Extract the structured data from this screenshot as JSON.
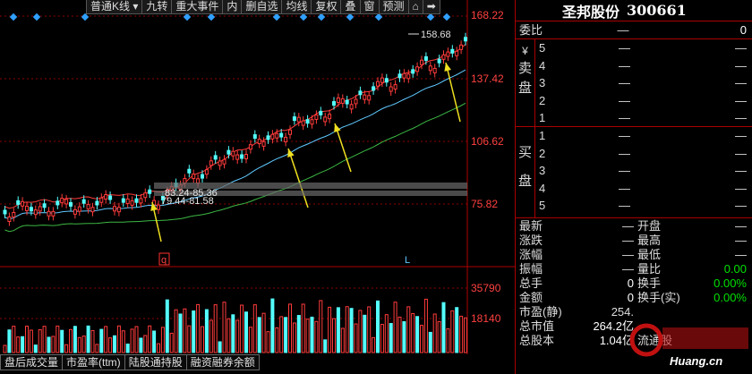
{
  "toolbar": {
    "items": [
      "普通K线",
      "▾",
      "九转",
      "重大事件",
      "内",
      "删自选",
      "均线",
      "复权",
      "叠",
      "窗",
      "预测"
    ]
  },
  "price_axis": {
    "labels": [
      "168.22",
      "137.42",
      "106.62",
      "75.82"
    ]
  },
  "price_markers": {
    "high_label": "158.68",
    "range_top": "83.24-85.36",
    "range_bottom": "79.44-81.58",
    "event_q": "q",
    "event_l": "L"
  },
  "volume_axis": {
    "labels": [
      "35790",
      "18140"
    ]
  },
  "bottom_tabs": [
    "盘后成交量",
    "市盈率(ttm)",
    "陆股通持股",
    "融资融券余额"
  ],
  "quote": {
    "name": "圣邦股份",
    "code": "300661",
    "weibi_label": "委比",
    "weibi_dash": "—",
    "weibi_value": "0",
    "sell_side": [
      "¥",
      "卖",
      "盘"
    ],
    "sell_levels": [
      {
        "level": "5",
        "price": "—",
        "vol": "—"
      },
      {
        "level": "4",
        "price": "—",
        "vol": "—"
      },
      {
        "level": "3",
        "price": "—",
        "vol": "—"
      },
      {
        "level": "2",
        "price": "—",
        "vol": "—"
      },
      {
        "level": "1",
        "price": "—",
        "vol": "—"
      }
    ],
    "buy_side": [
      "买",
      "盘"
    ],
    "buy_levels": [
      {
        "level": "1",
        "price": "—",
        "vol": "—"
      },
      {
        "level": "2",
        "price": "—",
        "vol": "—"
      },
      {
        "level": "3",
        "price": "—",
        "vol": "—"
      },
      {
        "level": "4",
        "price": "—",
        "vol": "—"
      },
      {
        "level": "5",
        "price": "—",
        "vol": "—"
      }
    ],
    "stats": [
      {
        "l1": "最新",
        "v1": "—",
        "l2": "开盘",
        "v2": "—"
      },
      {
        "l1": "涨跌",
        "v1": "—",
        "l2": "最高",
        "v2": "—"
      },
      {
        "l1": "涨幅",
        "v1": "—",
        "l2": "最低",
        "v2": "—"
      },
      {
        "l1": "振幅",
        "v1": "—",
        "l2": "量比",
        "v2": "0.00"
      },
      {
        "l1": "总手",
        "v1": "0",
        "l2": "换手",
        "v2": "0.00%"
      },
      {
        "l1": "金额",
        "v1": "0",
        "l2": "换手(实)",
        "v2": "0.00%"
      },
      {
        "l1": "市盈(静)",
        "v1": "254.",
        "l2": "",
        "v2": ""
      },
      {
        "l1": "总市值",
        "v1": "264.2亿",
        "l2": "",
        "v2": ""
      },
      {
        "l1": "总股本",
        "v1": "1.04亿",
        "l2": "流通股",
        "v2": ""
      }
    ]
  },
  "watermark": {
    "text": "Huang.cn"
  },
  "colors": {
    "up": "#ff3b3b",
    "down": "#54ffff",
    "ma_white": "#e8e8e8",
    "ma_blue": "#5fc8ff",
    "ma_green": "#3cb843",
    "arrow": "#f0e020",
    "grid": "#8b0000"
  }
}
